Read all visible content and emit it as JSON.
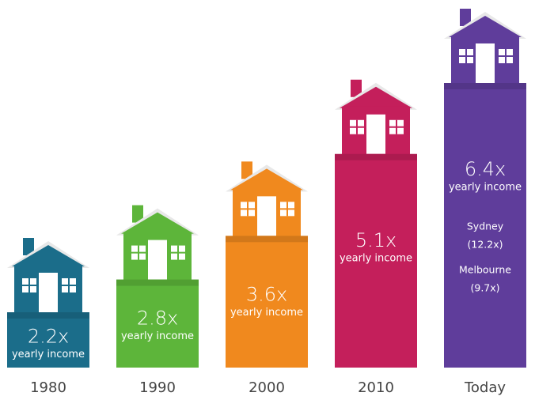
{
  "chart_data": {
    "type": "bar",
    "categories": [
      "1980",
      "1990",
      "2000",
      "2010",
      "Today"
    ],
    "values": [
      2.2,
      2.8,
      3.6,
      5.1,
      6.4
    ],
    "value_labels": [
      "2.2x",
      "2.8x",
      "3.6x",
      "5.1x",
      "6.4x"
    ],
    "bar_captions": [
      "yearly income",
      "yearly income",
      "yearly income",
      "yearly income",
      "yearly income"
    ],
    "colors": [
      "#1b6d8a",
      "#5db53a",
      "#f0891e",
      "#c41f5b",
      "#5f3d9b"
    ],
    "annotations": [
      "Sydney",
      "(12.2x)",
      "Melbourne",
      "(9.7x)"
    ]
  }
}
